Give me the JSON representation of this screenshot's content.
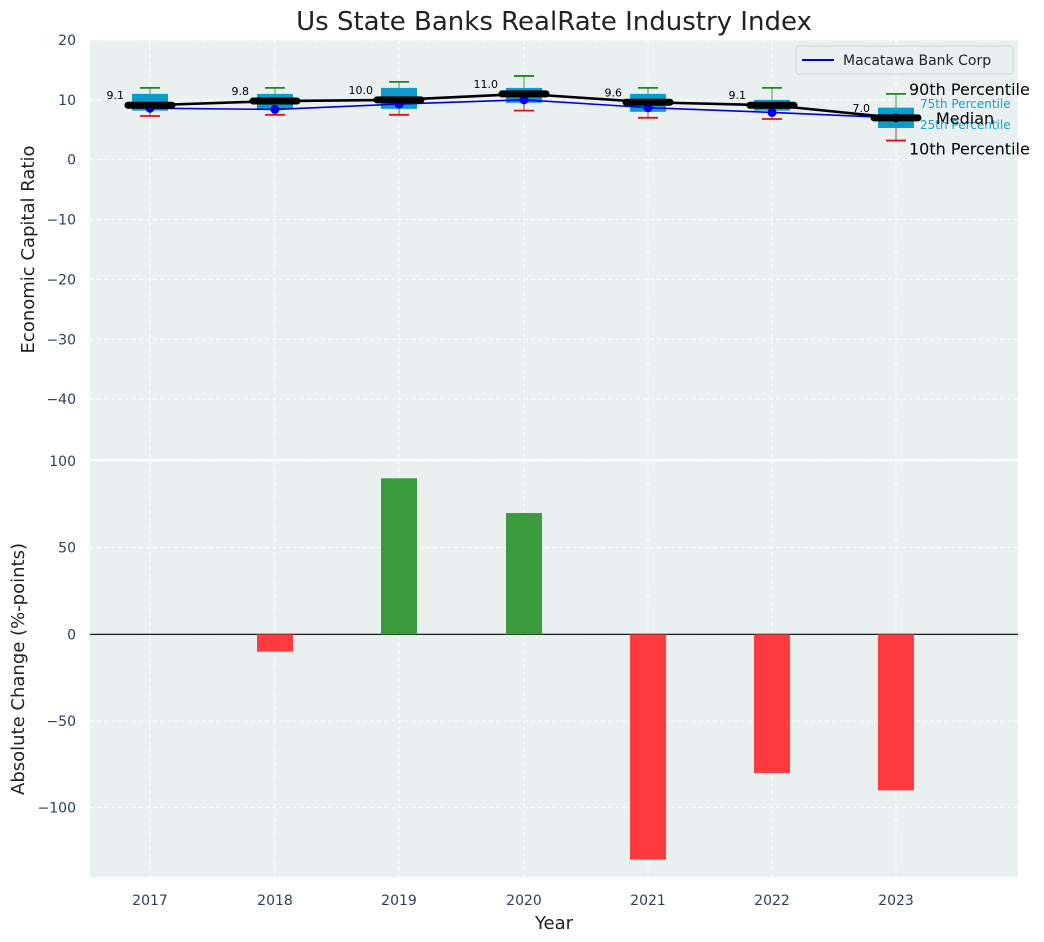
{
  "chart_data": [
    {
      "type": "box",
      "title": "Us State Banks RealRate Industry Index",
      "xlabel": "",
      "ylabel": "Economic Capital Ratio",
      "ylim": [
        -50,
        20
      ],
      "yticks": [
        20,
        10,
        0,
        -10,
        -20,
        -30,
        -40
      ],
      "grid": true,
      "legend": {
        "position": "top-right",
        "entries": [
          "Macatawa Bank Corp"
        ]
      },
      "categories": [
        "2017",
        "2018",
        "2019",
        "2020",
        "2021",
        "2022",
        "2023"
      ],
      "p10": [
        7.3,
        7.5,
        7.5,
        8.2,
        7.0,
        6.8,
        3.2
      ],
      "p25": [
        8.2,
        8.5,
        8.5,
        9.5,
        8.0,
        8.2,
        5.3
      ],
      "median": [
        9.1,
        9.8,
        10.0,
        11.0,
        9.6,
        9.1,
        7.0
      ],
      "p75": [
        11.0,
        11.0,
        12.0,
        12.0,
        11.0,
        10.0,
        8.7
      ],
      "p90": [
        12.0,
        12.0,
        13.0,
        14.0,
        12.0,
        12.0,
        11.0
      ],
      "median_labels": [
        "9.1",
        "9.8",
        "10.0",
        "11.0",
        "9.6",
        "9.1",
        "7.0"
      ],
      "series": [
        {
          "name": "Macatawa Bank Corp",
          "values": [
            8.6,
            8.4,
            9.3,
            10.0,
            8.7,
            7.9,
            7.0
          ]
        }
      ],
      "annotations": {
        "p90": "90th Percentile",
        "p75": "75th Percentile",
        "median": "Median",
        "p25": "25th Percentile",
        "p10": "10th Percentile"
      }
    },
    {
      "type": "bar",
      "title": "",
      "xlabel": "Year",
      "ylabel": "Absolute Change (%-points)",
      "ylim": [
        -140,
        100
      ],
      "yticks": [
        100,
        50,
        0,
        -50,
        -100
      ],
      "grid": true,
      "categories": [
        "2017",
        "2018",
        "2019",
        "2020",
        "2021",
        "2022",
        "2023"
      ],
      "values": [
        0,
        -10,
        90,
        70,
        -130,
        -80,
        -90
      ],
      "positive_color": "#3a9a3c",
      "negative_color": "#ff3b3f"
    }
  ]
}
